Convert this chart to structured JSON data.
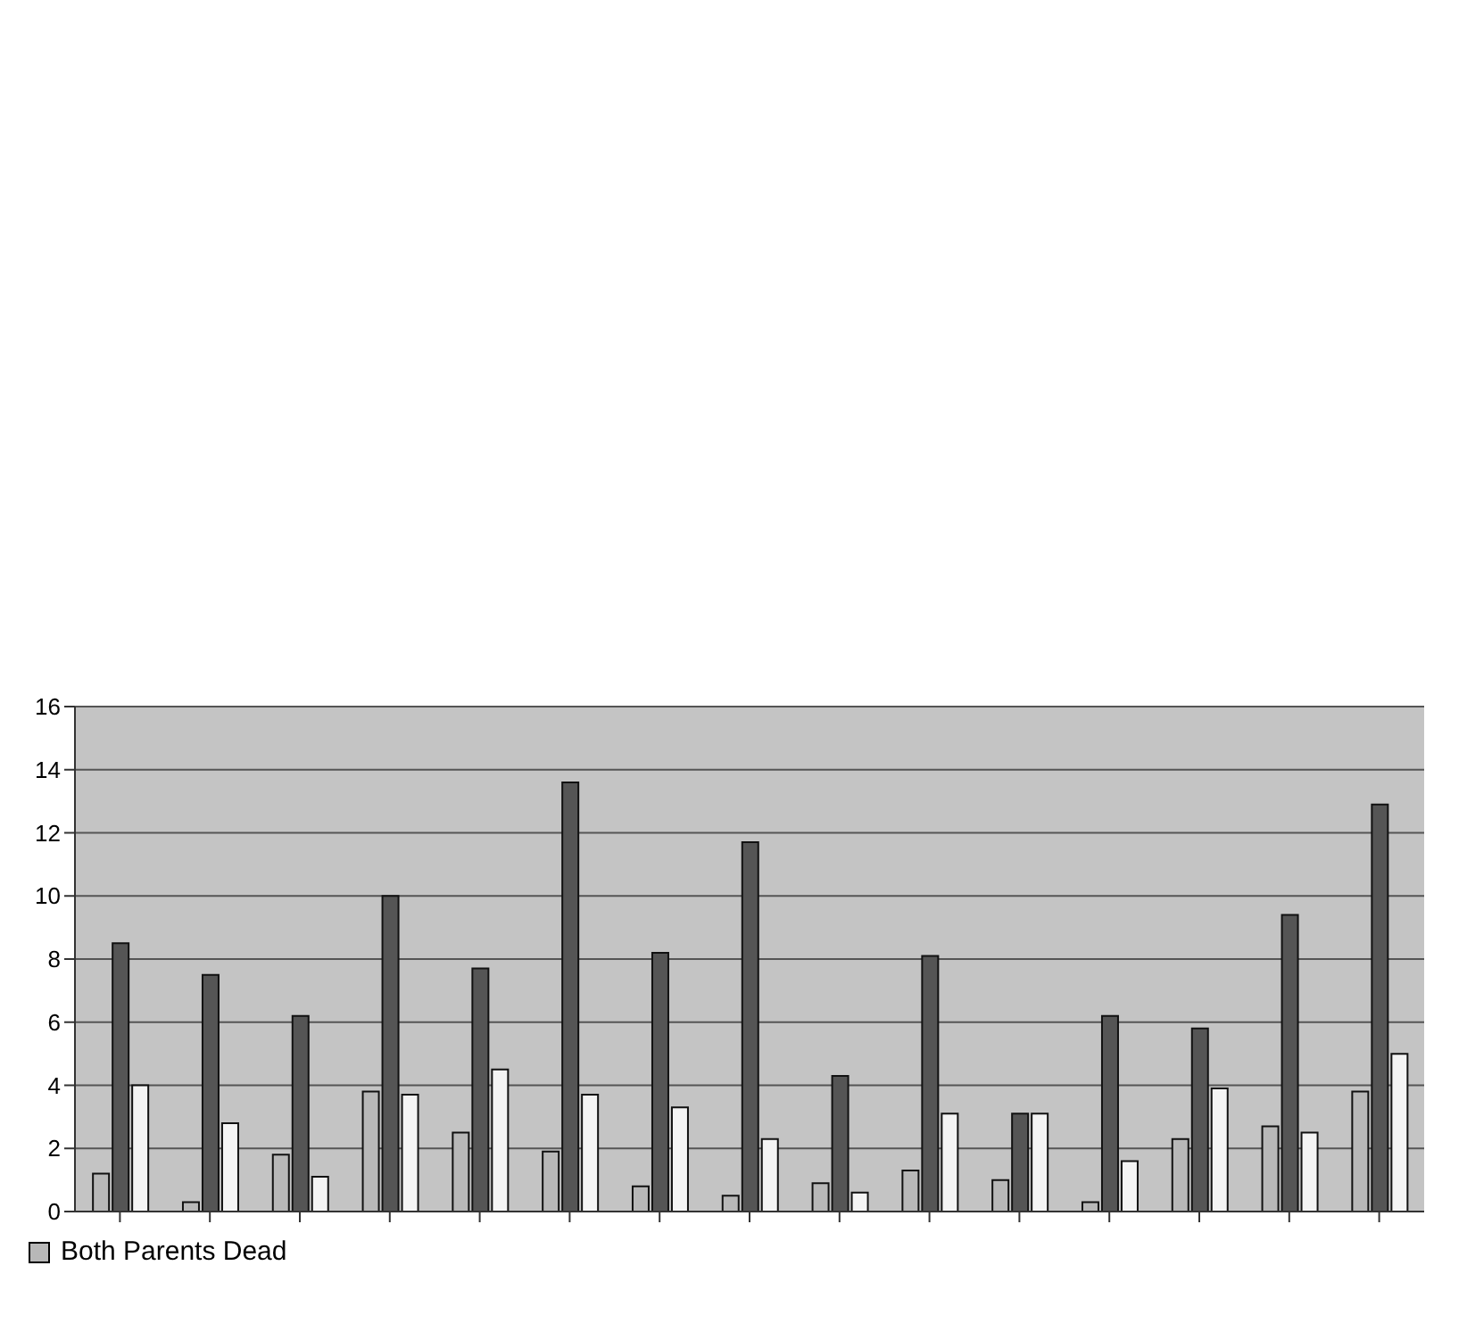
{
  "chart_data": {
    "type": "bar",
    "categories": [
      null,
      null,
      null,
      null,
      null,
      null,
      null,
      null,
      null,
      null,
      null,
      null,
      null,
      null,
      null
    ],
    "series": [
      {
        "name": "Both Parents Dead",
        "color": "#b8b8b8",
        "values": [
          1.2,
          0.3,
          1.8,
          3.8,
          2.5,
          1.9,
          0.8,
          0.5,
          0.9,
          1.3,
          1.0,
          0.3,
          2.3,
          2.7,
          3.8
        ]
      },
      {
        "color": "#555555",
        "values": [
          8.5,
          7.5,
          6.2,
          10.0,
          7.7,
          13.6,
          8.2,
          11.7,
          4.3,
          8.1,
          3.1,
          6.2,
          5.8,
          9.4,
          12.9
        ]
      },
      {
        "color": "#f4f4f4",
        "values": [
          4.0,
          2.8,
          1.1,
          3.7,
          4.5,
          3.7,
          3.3,
          2.3,
          0.6,
          3.1,
          3.1,
          1.6,
          3.9,
          2.5,
          5.0
        ]
      }
    ],
    "ylim": [
      0,
      16
    ],
    "yticks": [
      0,
      2,
      4,
      6,
      8,
      10,
      12,
      14,
      16
    ],
    "grid": "y",
    "legend": "bottom left"
  }
}
